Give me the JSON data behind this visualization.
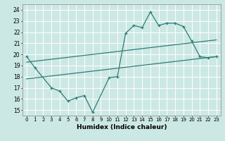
{
  "xlabel": "Humidex (Indice chaleur)",
  "bg_color": "#cce8e4",
  "line_color": "#2d7d78",
  "grid_color": "#ffffff",
  "xlim": [
    -0.5,
    23.5
  ],
  "ylim": [
    14.5,
    24.5
  ],
  "yticks": [
    15,
    16,
    17,
    18,
    19,
    20,
    21,
    22,
    23,
    24
  ],
  "xticks": [
    0,
    1,
    2,
    3,
    4,
    5,
    6,
    7,
    8,
    9,
    10,
    11,
    12,
    13,
    14,
    15,
    16,
    17,
    18,
    19,
    20,
    21,
    22,
    23
  ],
  "line1_x": [
    0,
    1,
    3,
    4,
    5,
    6,
    7,
    8,
    10,
    11,
    12,
    13,
    14,
    15,
    16,
    17,
    18,
    19,
    20,
    21,
    22,
    23
  ],
  "line1_y": [
    19.8,
    18.8,
    17.0,
    16.7,
    15.8,
    16.1,
    16.3,
    14.8,
    17.9,
    18.0,
    21.9,
    22.6,
    22.4,
    23.8,
    22.6,
    22.8,
    22.8,
    22.5,
    21.2,
    19.8,
    19.7,
    19.8
  ],
  "line2_x": [
    0,
    23
  ],
  "line2_y": [
    19.3,
    21.3
  ],
  "line3_x": [
    0,
    23
  ],
  "line3_y": [
    17.8,
    19.8
  ]
}
